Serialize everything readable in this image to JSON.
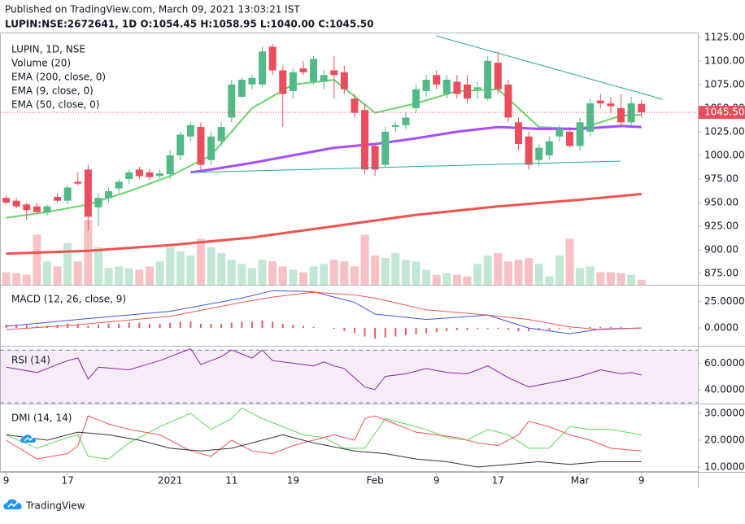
{
  "header": {
    "published": "Published on TradingView.com, March 09, 2021 13:03:21 IST",
    "symbol_line": "LUPIN:NSE:2672641, 1D  O:1054.45 H:1058.95 L:1040.00 C:1045.50"
  },
  "footer": {
    "brand": "TradingView"
  },
  "x_axis": {
    "xlim": [
      -0.6,
      67.5
    ],
    "xticks": [
      {
        "value": 0,
        "label": "9"
      },
      {
        "value": 6,
        "label": "17"
      },
      {
        "value": 16,
        "label": "2021"
      },
      {
        "value": 22,
        "label": "11"
      },
      {
        "value": 28,
        "label": "19"
      },
      {
        "value": 36,
        "label": "Feb"
      },
      {
        "value": 42,
        "label": "9"
      },
      {
        "value": 48,
        "label": "17"
      },
      {
        "value": 56,
        "label": "Mar"
      },
      {
        "value": 62,
        "label": "9"
      }
    ]
  },
  "chart_data": [
    {
      "type": "candlestick",
      "title": "LUPIN, 1D, NSE",
      "up_color": "#53b987",
      "down_color": "#eb4d5c",
      "ylim": [
        863,
        1130
      ],
      "yticks": [
        {
          "value": 875,
          "label": "875.00"
        },
        {
          "value": 900,
          "label": "900.00"
        },
        {
          "value": 925,
          "label": "925.00"
        },
        {
          "value": 950,
          "label": "950.00"
        },
        {
          "value": 975,
          "label": "975.00"
        },
        {
          "value": 1000,
          "label": "1000.00"
        },
        {
          "value": 1025,
          "label": "1025.00"
        },
        {
          "value": 1050,
          "label": "1050.00"
        },
        {
          "value": 1075,
          "label": "1075.00"
        },
        {
          "value": 1100,
          "label": "1100.00"
        },
        {
          "value": 1125,
          "label": "1125.00"
        }
      ],
      "last_price": {
        "value": 1045.5,
        "label": "1045.50"
      },
      "candles": {
        "open": [
          955,
          952,
          948,
          946,
          940,
          956,
          952,
          972,
          985,
          945,
          955,
          965,
          975,
          985,
          982,
          978,
          980,
          1000,
          1020,
          1030,
          995,
          1015,
          1040,
          1062,
          1075,
          1075,
          1115,
          1090,
          1068,
          1092,
          1078,
          1078,
          1090,
          1088,
          1060,
          1048,
          1010,
          990,
          1030,
          1032,
          1050,
          1068,
          1085,
          1065,
          1078,
          1075,
          1070,
          1060,
          1098,
          1075,
          1035,
          1020,
          995,
          1000,
          1020,
          1025,
          1010,
          1025,
          1058,
          1055,
          1050,
          1035,
          1054.45
        ],
        "high": [
          958,
          955,
          950,
          950,
          948,
          960,
          968,
          982,
          990,
          960,
          966,
          975,
          985,
          988,
          986,
          985,
          1005,
          1025,
          1035,
          1035,
          1025,
          1035,
          1080,
          1082,
          1085,
          1115,
          1118,
          1095,
          1092,
          1100,
          1105,
          1090,
          1105,
          1095,
          1065,
          1055,
          1012,
          1030,
          1035,
          1045,
          1075,
          1085,
          1090,
          1085,
          1085,
          1085,
          1078,
          1105,
          1110,
          1080,
          1040,
          1025,
          1012,
          1020,
          1032,
          1030,
          1040,
          1060,
          1065,
          1062,
          1065,
          1062,
          1058.95
        ],
        "low": [
          948,
          944,
          932,
          938,
          936,
          950,
          948,
          968,
          920,
          925,
          950,
          960,
          970,
          975,
          974,
          975,
          975,
          995,
          1015,
          985,
          990,
          1010,
          1035,
          1060,
          1070,
          1072,
          1085,
          1030,
          1060,
          1085,
          1075,
          1070,
          1060,
          1065,
          1040,
          980,
          978,
          988,
          1025,
          1028,
          1045,
          1062,
          1070,
          1060,
          1060,
          1055,
          1060,
          1058,
          1065,
          1035,
          1005,
          985,
          988,
          995,
          1015,
          1008,
          1005,
          1020,
          1050,
          1045,
          1030,
          1032,
          1040
        ],
        "close": [
          950,
          946,
          942,
          940,
          946,
          952,
          966,
          970,
          935,
          955,
          962,
          972,
          982,
          978,
          977,
          981,
          1000,
          1022,
          1032,
          990,
          1020,
          1030,
          1075,
          1080,
          1082,
          1110,
          1090,
          1065,
          1088,
          1088,
          1102,
          1085,
          1085,
          1070,
          1045,
          985,
          985,
          1025,
          1032,
          1040,
          1070,
          1080,
          1075,
          1080,
          1065,
          1060,
          1072,
          1100,
          1070,
          1040,
          1012,
          990,
          1008,
          1015,
          1028,
          1010,
          1035,
          1055,
          1055,
          1052,
          1035,
          1055,
          1045.5
        ]
      },
      "volume": {
        "name": "Volume (20)",
        "up_color": "rgba(83,185,135,0.35)",
        "down_color": "rgba(235,77,92,0.35)",
        "values": [
          15,
          14,
          12,
          60,
          28,
          22,
          50,
          28,
          78,
          45,
          20,
          22,
          20,
          18,
          22,
          28,
          45,
          40,
          35,
          55,
          45,
          38,
          30,
          25,
          20,
          30,
          28,
          22,
          18,
          15,
          22,
          25,
          30,
          28,
          22,
          60,
          35,
          32,
          38,
          30,
          28,
          18,
          12,
          14,
          12,
          10,
          25,
          35,
          38,
          28,
          30,
          32,
          25,
          10,
          35,
          55,
          20,
          22,
          15,
          15,
          14,
          12,
          6
        ]
      },
      "series": [
        {
          "name": "EMA (200, close, 0)",
          "color": "#ef5350",
          "width": 3,
          "x": [
            0,
            8,
            16,
            24,
            32,
            40,
            48,
            56,
            62
          ],
          "values": [
            896,
            899,
            905,
            913,
            925,
            937,
            946,
            953,
            959
          ]
        },
        {
          "name": "EMA (9, close, 0)",
          "color": "#66d56b",
          "width": 2,
          "x": [
            0,
            4,
            8,
            12,
            16,
            20,
            24,
            28,
            32,
            36,
            40,
            44,
            48,
            52,
            56,
            60,
            62
          ],
          "values": [
            934,
            940,
            948,
            962,
            978,
            1000,
            1050,
            1075,
            1080,
            1045,
            1055,
            1068,
            1070,
            1030,
            1028,
            1042,
            1043
          ]
        },
        {
          "name": "EMA (50, close, 0)",
          "color": "#a64dff",
          "width": 3,
          "x": [
            18,
            20,
            24,
            28,
            32,
            36,
            40,
            44,
            48,
            52,
            56,
            60,
            62
          ],
          "values": [
            982,
            985,
            992,
            1000,
            1008,
            1012,
            1018,
            1025,
            1030,
            1028,
            1028,
            1031,
            1030
          ]
        }
      ]
    },
    {
      "type": "macd",
      "title": "MACD (12, 26, close, 9)",
      "ylim": [
        -16,
        39
      ],
      "yticks": [
        {
          "value": 25,
          "label": "25.0000"
        },
        {
          "value": 0,
          "label": "0.0000"
        }
      ],
      "histogram": {
        "color": "#e35d6a",
        "values": [
          3,
          3,
          3,
          2,
          2,
          3,
          4,
          4,
          2,
          3,
          4,
          4,
          5,
          5,
          4,
          4,
          5,
          6,
          6,
          4,
          4,
          4,
          5,
          6,
          6,
          7,
          6,
          4,
          3,
          2,
          1,
          0,
          -1,
          -3,
          -5,
          -8,
          -10,
          -9,
          -8,
          -7,
          -6,
          -5,
          -4,
          -3,
          -2,
          -2,
          -1,
          -1,
          -1,
          -2,
          -3,
          -3,
          -2,
          -2,
          -1,
          -1,
          0,
          1,
          1,
          1,
          1,
          0,
          0
        ]
      },
      "series": [
        {
          "color": "#3f51e5",
          "x": [
            0,
            7,
            16,
            23,
            26,
            30,
            34,
            36,
            41,
            47,
            51,
            55,
            58,
            62
          ],
          "values": [
            1.6,
            8,
            15.6,
            28,
            35,
            34,
            24,
            13,
            8,
            12,
            0,
            -5.5,
            -1,
            0
          ]
        },
        {
          "color": "#ef5350",
          "x": [
            0,
            7,
            16,
            23,
            26,
            30,
            34,
            36,
            41,
            47,
            51,
            55,
            58,
            62
          ],
          "values": [
            -1.6,
            3,
            11,
            24,
            29,
            33.6,
            31,
            28,
            17,
            12,
            8,
            1,
            -1.5,
            0
          ]
        }
      ]
    },
    {
      "type": "rsi",
      "title": "RSI (14)",
      "ylim": [
        30,
        72
      ],
      "bands": [
        70,
        30
      ],
      "band_color": "rgba(156,39,176,0.09)",
      "yticks": [
        {
          "value": 60,
          "label": "60.0000"
        },
        {
          "value": 40,
          "label": "40.0000"
        }
      ],
      "series": [
        {
          "color": "#8e24aa",
          "x": [
            0,
            3,
            6,
            7,
            8,
            9,
            12,
            15,
            17,
            18,
            19,
            21,
            22,
            24,
            25,
            26,
            28,
            30,
            31,
            32,
            33,
            34,
            35,
            36,
            37,
            39,
            41,
            43,
            45,
            47,
            49,
            51,
            53,
            55,
            56,
            58,
            60,
            61,
            62
          ],
          "values": [
            57,
            53,
            62,
            64,
            48,
            57,
            55,
            62,
            68,
            71,
            59,
            65,
            70,
            64,
            70,
            62,
            60,
            58,
            61,
            58,
            56,
            49,
            42,
            40,
            50,
            52,
            56,
            53,
            52,
            58,
            49,
            42,
            45,
            48,
            50,
            55,
            52,
            53,
            51
          ]
        }
      ]
    },
    {
      "type": "dmi",
      "title": "DMI (14, 14)",
      "ylim": [
        8.5,
        33
      ],
      "yticks": [
        {
          "value": 30,
          "label": "30.0000"
        },
        {
          "value": 20,
          "label": "20.0000"
        },
        {
          "value": 10,
          "label": "10.0000"
        }
      ],
      "series": [
        {
          "color": "#5ad85a",
          "x": [
            0,
            3,
            6,
            7,
            8,
            10,
            12,
            15,
            18,
            20,
            22,
            23,
            25,
            27,
            29,
            31,
            33,
            35,
            37,
            39,
            41,
            43,
            45,
            47,
            49,
            51,
            53,
            55,
            57,
            59,
            62
          ],
          "values": [
            22,
            17,
            21,
            22,
            14,
            13,
            19,
            25,
            30,
            24,
            28,
            32,
            28,
            25,
            22,
            21,
            17,
            17,
            28,
            26,
            24,
            21,
            20,
            24,
            22,
            17,
            17,
            25,
            24,
            24,
            22
          ]
        },
        {
          "color": "#ef5350",
          "x": [
            0,
            3,
            6,
            7,
            8,
            10,
            12,
            15,
            18,
            20,
            22,
            24,
            26,
            28,
            30,
            32,
            34,
            35,
            36,
            38,
            40,
            42,
            44,
            46,
            48,
            50,
            51,
            53,
            55,
            57,
            59,
            62
          ],
          "values": [
            20,
            13,
            15,
            18,
            29,
            26,
            24,
            22,
            16,
            14,
            20,
            16,
            15,
            18,
            20,
            22,
            20,
            28,
            29,
            26,
            23,
            22,
            21,
            19,
            18,
            22,
            27,
            25,
            22,
            20,
            17,
            16
          ]
        },
        {
          "color": "#333333",
          "x": [
            0,
            4,
            7,
            10,
            13,
            16,
            19,
            22,
            25,
            27,
            30,
            34,
            37,
            40,
            43,
            46,
            49,
            52,
            55,
            58,
            62
          ],
          "values": [
            22,
            20,
            23,
            22,
            20,
            17,
            16,
            17,
            20,
            22,
            19,
            16,
            15,
            13,
            12,
            10,
            11,
            12,
            11,
            12,
            12
          ]
        }
      ]
    }
  ]
}
